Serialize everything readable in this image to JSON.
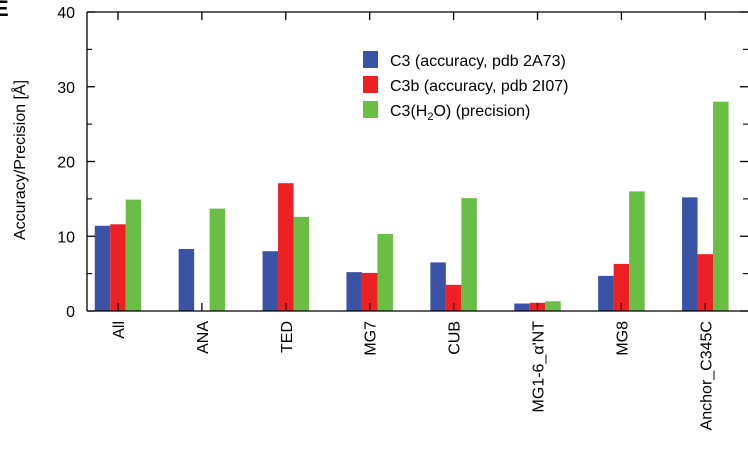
{
  "panel_label": "E",
  "chart_data": {
    "type": "bar",
    "title": "",
    "xlabel": "",
    "ylabel": "Accuracy/Precision [Å]",
    "ylim": [
      0,
      40
    ],
    "yticks": [
      0,
      10,
      20,
      30,
      40
    ],
    "grid": false,
    "legend_placement": "top-right",
    "categories": [
      "All",
      "ANA",
      "TED",
      "MG7",
      "CUB",
      "MG1-6_α'NT",
      "MG8",
      "Anchor_C345C"
    ],
    "series": [
      {
        "name": "C3 (accuracy, pdb 2A73)",
        "color": "#3a53a4",
        "values": [
          11.4,
          8.3,
          8.0,
          5.2,
          6.5,
          1.0,
          4.7,
          15.2
        ]
      },
      {
        "name": "C3b (accuracy, pdb 2I07)",
        "color": "#ed2024",
        "values": [
          11.6,
          0,
          17.1,
          5.1,
          3.5,
          1.1,
          6.3,
          7.6
        ]
      },
      {
        "name": "C3(H2O) (precision)",
        "name_parts": [
          "C3(H",
          "2",
          "O) (precision)"
        ],
        "color": "#6abd45",
        "values": [
          14.9,
          13.7,
          12.6,
          10.3,
          15.1,
          1.3,
          16.0,
          28.0
        ]
      }
    ]
  }
}
